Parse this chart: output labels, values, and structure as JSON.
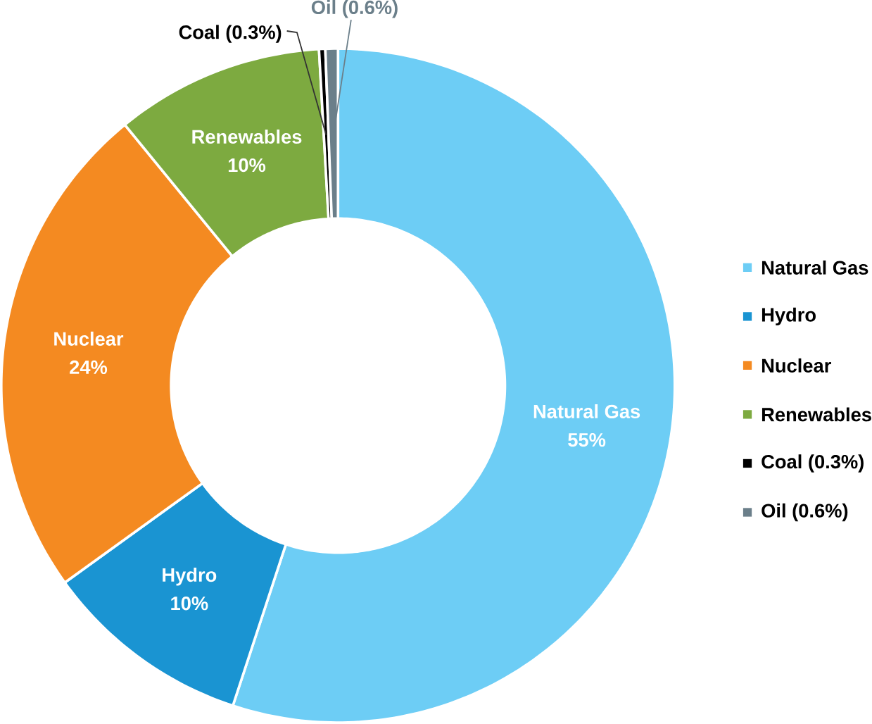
{
  "chart_data": {
    "type": "donut",
    "categories": [
      "Natural Gas",
      "Hydro",
      "Nuclear",
      "Renewables",
      "Coal (0.3%)",
      "Oil (0.6%)"
    ],
    "values": [
      55,
      10,
      24,
      10,
      0.3,
      0.6
    ],
    "value_labels": [
      "55%",
      "10%",
      "24%",
      "10%",
      null,
      null
    ],
    "colors": [
      "#6dcdf5",
      "#1a94d2",
      "#f48a21",
      "#7daa40",
      "#000000",
      "#6b7f8a"
    ],
    "legend": "right"
  }
}
